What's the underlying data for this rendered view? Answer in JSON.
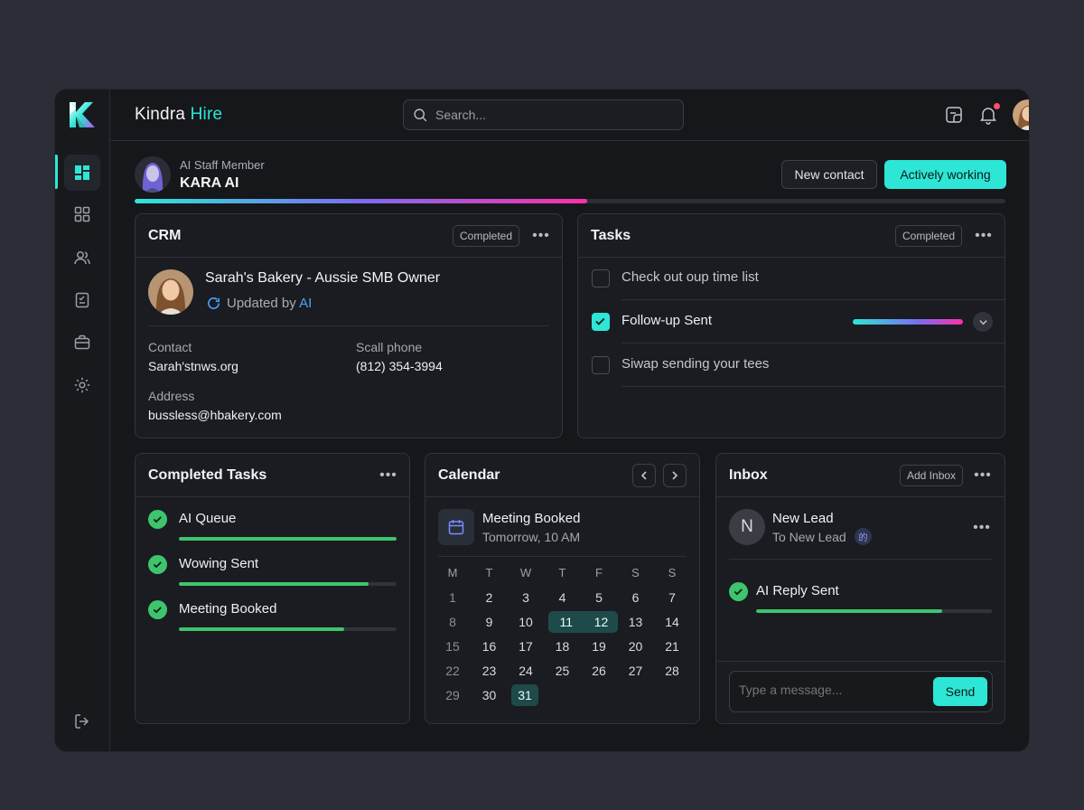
{
  "brand": {
    "name": "Kindra",
    "accent": "Hire"
  },
  "search": {
    "placeholder": "Search..."
  },
  "agent": {
    "role": "AI Staff Member",
    "name": "KARA AI",
    "progress": 0.52
  },
  "actions": {
    "new_contact": "New contact",
    "status": "Actively working"
  },
  "crm": {
    "title": "CRM",
    "badge": "Completed",
    "contact_name": "Sarah's Bakery - Aussie SMB Owner",
    "updated_prefix": "Updated by ",
    "updated_by": "AI",
    "contact_label": "Contact",
    "contact_value": "Sarah'stnws.org",
    "phone_label": "Scall phone",
    "phone_value": "(812) 354-3994",
    "address_label": "Address",
    "address_value": "bussless@hbakery.com"
  },
  "tasks": {
    "title": "Tasks",
    "badge": "Completed",
    "items": [
      {
        "label": "Check out oup time list",
        "checked": false
      },
      {
        "label": "Follow-up Sent",
        "checked": true
      },
      {
        "label": "Siwap sending your tees",
        "checked": false
      }
    ]
  },
  "completed_tasks": {
    "title": "Completed Tasks",
    "items": [
      {
        "label": "AI Queue",
        "progress": 1.0
      },
      {
        "label": "Wowing Sent",
        "progress": 0.87
      },
      {
        "label": "Meeting Booked",
        "progress": 0.76
      }
    ]
  },
  "calendar": {
    "title": "Calendar",
    "event_title": "Meeting Booked",
    "event_time": "Tomorrow, 10 AM",
    "weekdays": [
      "M",
      "T",
      "W",
      "T",
      "F",
      "S",
      "S"
    ],
    "days": [
      [
        "1",
        "2",
        "3",
        "4",
        "5",
        "6",
        "7"
      ],
      [
        "8",
        "9",
        "10",
        "11",
        "12",
        "13",
        "14"
      ],
      [
        "15",
        "16",
        "17",
        "18",
        "19",
        "20",
        "21"
      ],
      [
        "22",
        "23",
        "24",
        "25",
        "26",
        "27",
        "28"
      ],
      [
        "29",
        "30",
        "31"
      ]
    ],
    "selected": [
      "11",
      "12",
      "31"
    ]
  },
  "inbox": {
    "title": "Inbox",
    "add_label": "Add Inbox",
    "lead_initial": "N",
    "lead_title": "New Lead",
    "lead_sub": "To New Lead",
    "lead_tag": "的",
    "reply_label": "AI Reply Sent",
    "reply_progress": 0.79,
    "message_placeholder": "Type a message...",
    "send_label": "Send"
  },
  "colors": {
    "accent": "#2ee6d6",
    "success": "#3ec46d",
    "alert": "#ff4d6d"
  }
}
